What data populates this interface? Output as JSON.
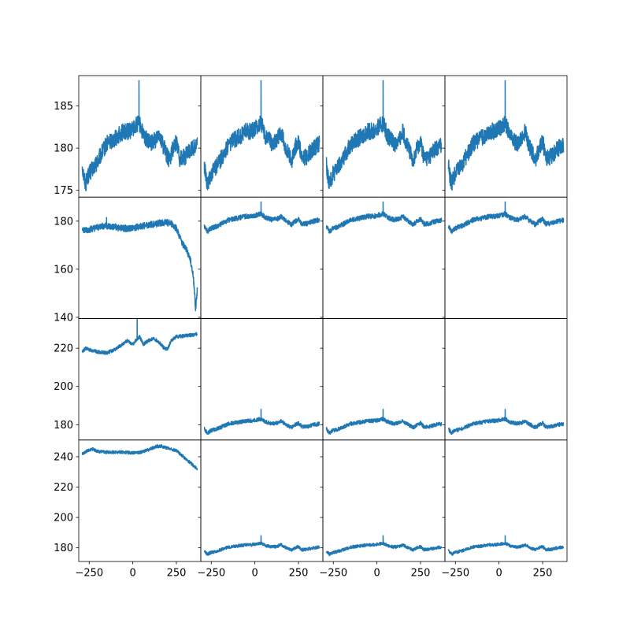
{
  "figure": {
    "nrows": 4,
    "ncols": 4,
    "sharex": true,
    "sharey": "row",
    "line_color": "#1f77b4",
    "background": "#ffffff",
    "grid": false
  },
  "chart_data": {
    "type": "line",
    "xlim": [
      -310,
      390
    ],
    "xticks": [
      -250,
      0,
      250
    ],
    "xtick_labels": [
      "−250",
      "0",
      "250"
    ],
    "x_range": [
      -290,
      370
    ],
    "rows": [
      {
        "ylim": [
          174.2,
          188.6
        ],
        "yticks": [
          175,
          180,
          185
        ],
        "ytick_labels": [
          "175",
          "180",
          "185"
        ]
      },
      {
        "ylim": [
          139.5,
          190.0
        ],
        "yticks": [
          140,
          160,
          180
        ],
        "ytick_labels": [
          "140",
          "160",
          "180"
        ]
      },
      {
        "ylim": [
          172.0,
          235.5
        ],
        "yticks": [
          180,
          200,
          220
        ],
        "ytick_labels": [
          "180",
          "200",
          "220"
        ]
      },
      {
        "ylim": [
          171.0,
          251.0
        ],
        "yticks": [
          180,
          200,
          220,
          240
        ],
        "ytick_labels": [
          "180",
          "200",
          "220",
          "240"
        ]
      }
    ],
    "profiles": {
      "common": {
        "x": [
          -290,
          -280,
          -270,
          -260,
          -250,
          -230,
          -200,
          -150,
          -100,
          -50,
          -20,
          10,
          25,
          35,
          45,
          60,
          80,
          100,
          130,
          150,
          170,
          190,
          210,
          230,
          250,
          270,
          300,
          330,
          370
        ],
        "y": [
          178.0,
          176.5,
          175.8,
          176.5,
          177.0,
          177.5,
          178.5,
          180.5,
          181.2,
          182.0,
          182.0,
          182.5,
          182.8,
          183.0,
          182.5,
          181.5,
          181.0,
          180.5,
          181.0,
          182.0,
          180.5,
          179.5,
          178.5,
          180.0,
          180.8,
          178.8,
          179.0,
          179.8,
          180.5
        ],
        "noise": 1.0,
        "spike_x": 35,
        "spike_y": 188.0
      },
      "r1c0": {
        "x": [
          -290,
          -270,
          -250,
          -220,
          -180,
          -150,
          -120,
          -100,
          -60,
          -20,
          20,
          60,
          100,
          140,
          180,
          220,
          250,
          270,
          290,
          310,
          330,
          345,
          355,
          360,
          370
        ],
        "y": [
          177.0,
          176.0,
          176.5,
          177.0,
          178.0,
          178.0,
          177.5,
          177.5,
          177.0,
          177.0,
          177.5,
          178.0,
          178.5,
          179.0,
          179.5,
          179.0,
          177.0,
          173.0,
          170.0,
          168.0,
          164.0,
          158.0,
          150.0,
          143.0,
          152.0
        ],
        "noise": 1.4,
        "spike_x": -150,
        "spike_y": 181.5
      },
      "r2c0": {
        "x": [
          -290,
          -270,
          -240,
          -200,
          -150,
          -100,
          -60,
          -30,
          0,
          25,
          40,
          60,
          90,
          120,
          150,
          180,
          200,
          220,
          250,
          300,
          350,
          370
        ],
        "y": [
          218.0,
          220.0,
          219.0,
          218.0,
          217.5,
          219.5,
          222.0,
          224.0,
          222.0,
          225.0,
          226.0,
          222.0,
          224.0,
          225.0,
          223.0,
          220.0,
          219.5,
          224.0,
          226.0,
          226.5,
          227.0,
          227.5
        ],
        "noise": 0.9,
        "spike_x": 25,
        "spike_y": 235.5
      },
      "r3c0": {
        "x": [
          -290,
          -260,
          -230,
          -200,
          -150,
          -100,
          -50,
          0,
          50,
          100,
          130,
          160,
          190,
          220,
          250,
          280,
          310,
          340,
          360,
          370
        ],
        "y": [
          242.0,
          244.0,
          245.0,
          243.5,
          243.0,
          243.0,
          243.0,
          242.5,
          243.0,
          245.0,
          246.5,
          247.0,
          246.0,
          245.0,
          244.0,
          241.0,
          238.0,
          235.0,
          233.0,
          232.0
        ],
        "noise": 1.0,
        "spike_x": 140,
        "spike_y": 248.0
      }
    },
    "panels": [
      {
        "row": 0,
        "col": 0,
        "profile": "common"
      },
      {
        "row": 0,
        "col": 1,
        "profile": "common"
      },
      {
        "row": 0,
        "col": 2,
        "profile": "common"
      },
      {
        "row": 0,
        "col": 3,
        "profile": "common"
      },
      {
        "row": 1,
        "col": 0,
        "profile": "r1c0"
      },
      {
        "row": 1,
        "col": 1,
        "profile": "common"
      },
      {
        "row": 1,
        "col": 2,
        "profile": "common"
      },
      {
        "row": 1,
        "col": 3,
        "profile": "common"
      },
      {
        "row": 2,
        "col": 0,
        "profile": "r2c0"
      },
      {
        "row": 2,
        "col": 1,
        "profile": "common"
      },
      {
        "row": 2,
        "col": 2,
        "profile": "common"
      },
      {
        "row": 2,
        "col": 3,
        "profile": "common"
      },
      {
        "row": 3,
        "col": 0,
        "profile": "r3c0"
      },
      {
        "row": 3,
        "col": 1,
        "profile": "common"
      },
      {
        "row": 3,
        "col": 2,
        "profile": "common"
      },
      {
        "row": 3,
        "col": 3,
        "profile": "common"
      }
    ]
  }
}
